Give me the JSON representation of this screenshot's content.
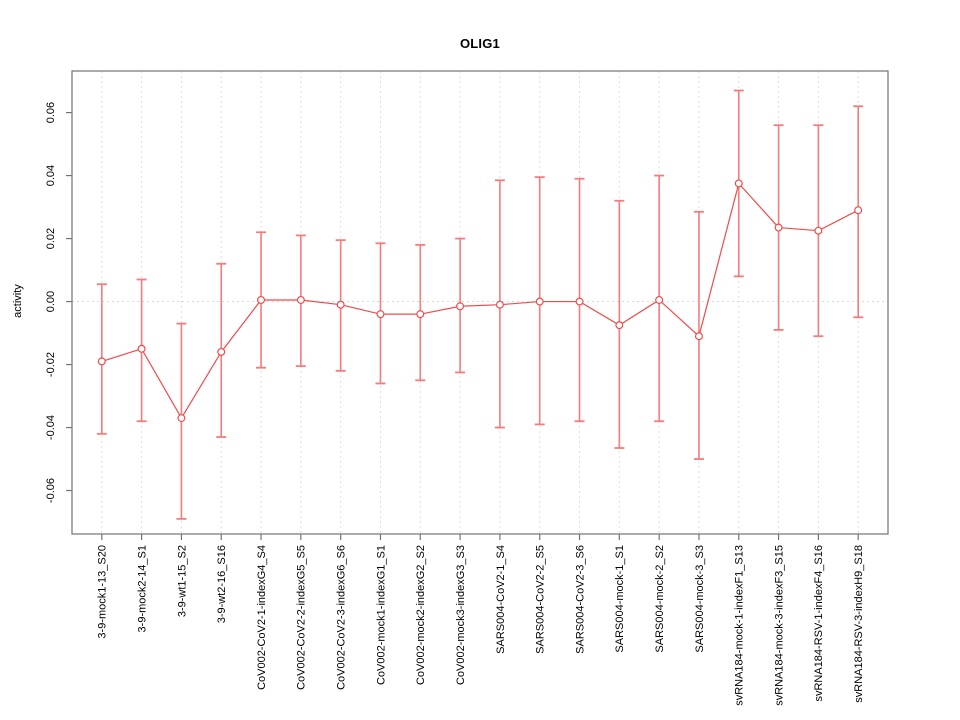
{
  "chart_data": {
    "type": "line",
    "variant": "points-with-error-bars",
    "title": "OLIG1",
    "xlabel": "",
    "ylabel": "activity",
    "legend": "none",
    "grid": {
      "vertical": "dotted line at every category",
      "horizontal": "dotted line at y=0 only"
    },
    "categories": [
      "3-9-mock1-13_S20",
      "3-9-mock2-14_S1",
      "3-9-wt1-15_S2",
      "3-9-wt2-16_S16",
      "CoV002-CoV2-1-indexG4_S4",
      "CoV002-CoV2-2-indexG5_S5",
      "CoV002-CoV2-3-indexG6_S6",
      "CoV002-mock1-indexG1_S1",
      "CoV002-mock2-indexG2_S2",
      "CoV002-mock3-indexG3_S3",
      "SARS004-CoV2-1_S4",
      "SARS004-CoV2-2_S5",
      "SARS004-CoV2-3_S6",
      "SARS004-mock-1_S1",
      "SARS004-mock-2_S2",
      "SARS004-mock-3_S3",
      "svRNA184-mock-1-indexF1_S13",
      "svRNA184-mock-3-indexF3_S15",
      "svRNA184-RSV-1-indexF4_S16",
      "svRNA184-RSV-3-indexH9_S18"
    ],
    "series": [
      {
        "name": "activity",
        "est": [
          -0.019,
          -0.015,
          -0.037,
          -0.016,
          0.0005,
          0.0005,
          -0.001,
          -0.004,
          -0.004,
          -0.0015,
          -0.001,
          0.0,
          0.0,
          -0.0075,
          0.0005,
          -0.011,
          0.0375,
          0.0235,
          0.0225,
          0.029
        ],
        "lower": [
          -0.042,
          -0.038,
          -0.069,
          -0.043,
          -0.021,
          -0.0205,
          -0.022,
          -0.026,
          -0.025,
          -0.0225,
          -0.04,
          -0.039,
          -0.038,
          -0.0465,
          -0.038,
          -0.05,
          0.008,
          -0.009,
          -0.011,
          -0.005
        ],
        "upper": [
          0.0055,
          0.007,
          -0.007,
          0.012,
          0.022,
          0.021,
          0.0195,
          0.0185,
          0.018,
          0.02,
          0.0385,
          0.0395,
          0.039,
          0.032,
          0.04,
          0.0285,
          0.067,
          0.056,
          0.056,
          0.062
        ]
      }
    ],
    "yticks": [
      -0.06,
      -0.04,
      -0.02,
      0.0,
      0.02,
      0.04,
      0.06
    ],
    "ytick_labels": [
      "-0.06",
      "-0.04",
      "-0.02",
      "0.00",
      "0.02",
      "0.04",
      "0.06"
    ],
    "ylim": [
      -0.0738,
      0.0732
    ],
    "colors": {
      "point": "#ef4b4b",
      "line": "#ef4b4b",
      "error_bar": "#f47c7c",
      "grid": "#dedede",
      "zero_line": "#d8d8d8",
      "box": "#737373",
      "tick_text": "#000000",
      "background": "#ffffff"
    }
  }
}
